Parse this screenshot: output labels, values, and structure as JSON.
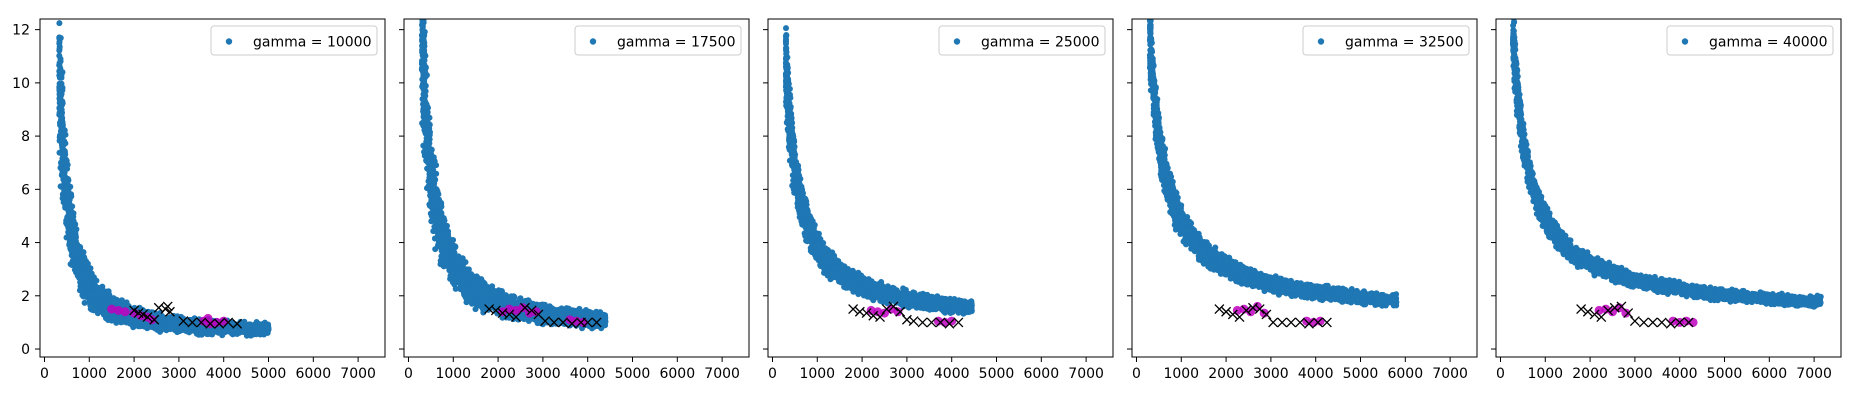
{
  "chart_data": [
    {
      "type": "scatter",
      "legend": "gamma = 10000",
      "legend_position": "top-right",
      "xlim": [
        -100,
        7600
      ],
      "ylim": [
        -0.3,
        12.4
      ],
      "xticks": [
        0,
        1000,
        2000,
        3000,
        4000,
        5000,
        6000,
        7000
      ],
      "yticks": [
        0,
        2,
        4,
        6,
        8,
        10,
        12
      ],
      "show_yticklabels": true,
      "colors": {
        "series": "#1f77b4",
        "highlight": "#bf00bf",
        "marker_x": "#000000"
      },
      "main_curve": {
        "x_start": 330,
        "x_end": 5000,
        "peak": 10.5,
        "k": 1.55,
        "floor": 0.6,
        "spread": 0.3
      },
      "x_markers": [
        [
          2000,
          1.45
        ],
        [
          2100,
          1.35
        ],
        [
          2200,
          1.3
        ],
        [
          2300,
          1.2
        ],
        [
          2450,
          1.1
        ],
        [
          2550,
          1.55
        ],
        [
          2700,
          1.5
        ],
        [
          2800,
          1.4
        ],
        [
          2750,
          1.6
        ],
        [
          3100,
          1.05
        ],
        [
          3300,
          1.0
        ],
        [
          3500,
          1.0
        ],
        [
          3700,
          0.95
        ],
        [
          3900,
          0.95
        ],
        [
          4100,
          1.0
        ],
        [
          4300,
          0.95
        ]
      ],
      "magenta_points": [
        [
          1500,
          1.5
        ],
        [
          1650,
          1.45
        ],
        [
          1800,
          1.4
        ],
        [
          2000,
          1.35
        ],
        [
          2150,
          1.25
        ],
        [
          2300,
          1.2
        ],
        [
          2400,
          1.1
        ],
        [
          3550,
          1.05
        ],
        [
          3700,
          0.95
        ],
        [
          3850,
          1.0
        ],
        [
          4000,
          1.05
        ],
        [
          3650,
          1.15
        ]
      ]
    },
    {
      "type": "scatter",
      "legend": "gamma = 17500",
      "legend_position": "top-right",
      "xlim": [
        -100,
        7600
      ],
      "ylim": [
        -0.3,
        12.4
      ],
      "xticks": [
        0,
        1000,
        2000,
        3000,
        4000,
        5000,
        6000,
        7000
      ],
      "yticks": [
        0,
        2,
        4,
        6,
        8,
        10,
        12
      ],
      "show_yticklabels": false,
      "colors": {
        "series": "#1f77b4",
        "highlight": "#bf00bf",
        "marker_x": "#000000"
      },
      "main_curve": {
        "x_start": 300,
        "x_end": 4400,
        "peak": 11.9,
        "k": 1.25,
        "floor": 0.7,
        "spread": 0.25
      },
      "x_markers": [
        [
          1800,
          1.5
        ],
        [
          1950,
          1.45
        ],
        [
          2100,
          1.35
        ],
        [
          2250,
          1.3
        ],
        [
          2400,
          1.2
        ],
        [
          2600,
          1.55
        ],
        [
          2750,
          1.45
        ],
        [
          2900,
          1.3
        ],
        [
          3050,
          1.05
        ],
        [
          3250,
          1.0
        ],
        [
          3450,
          1.0
        ],
        [
          3650,
          0.95
        ],
        [
          3850,
          1.0
        ],
        [
          4000,
          1.0
        ],
        [
          4200,
          1.0
        ]
      ],
      "magenta_points": [
        [
          2100,
          1.4
        ],
        [
          2250,
          1.5
        ],
        [
          2400,
          1.45
        ],
        [
          2550,
          1.55
        ],
        [
          2700,
          1.35
        ],
        [
          2850,
          1.4
        ],
        [
          3600,
          1.1
        ],
        [
          3750,
          1.05
        ],
        [
          3900,
          1.0
        ]
      ]
    },
    {
      "type": "scatter",
      "legend": "gamma = 25000",
      "legend_position": "top-right",
      "xlim": [
        -100,
        7600
      ],
      "ylim": [
        -0.3,
        12.4
      ],
      "xticks": [
        0,
        1000,
        2000,
        3000,
        4000,
        5000,
        6000,
        7000
      ],
      "yticks": [
        0,
        2,
        4,
        6,
        8,
        10,
        12
      ],
      "show_yticklabels": false,
      "colors": {
        "series": "#1f77b4",
        "highlight": "#bf00bf",
        "marker_x": "#000000"
      },
      "main_curve": {
        "x_start": 300,
        "x_end": 4450,
        "peak": 10.7,
        "k": 1.0,
        "floor": 0.9,
        "spread": 0.15
      },
      "x_markers": [
        [
          1800,
          1.5
        ],
        [
          1950,
          1.4
        ],
        [
          2100,
          1.35
        ],
        [
          2250,
          1.25
        ],
        [
          2400,
          1.2
        ],
        [
          2550,
          1.5
        ],
        [
          2700,
          1.6
        ],
        [
          2850,
          1.4
        ],
        [
          3000,
          1.1
        ],
        [
          3150,
          1.05
        ],
        [
          3350,
          1.0
        ],
        [
          3550,
          1.0
        ],
        [
          3750,
          1.0
        ],
        [
          3950,
          0.95
        ],
        [
          4150,
          1.0
        ]
      ],
      "magenta_points": [
        [
          2200,
          1.45
        ],
        [
          2350,
          1.4
        ],
        [
          2500,
          1.35
        ],
        [
          2650,
          1.5
        ],
        [
          2800,
          1.4
        ],
        [
          3700,
          1.05
        ],
        [
          3850,
          1.0
        ],
        [
          4000,
          1.05
        ]
      ]
    },
    {
      "type": "scatter",
      "legend": "gamma = 32500",
      "legend_position": "top-right",
      "xlim": [
        -100,
        7600
      ],
      "ylim": [
        -0.3,
        12.4
      ],
      "xticks": [
        0,
        1000,
        2000,
        3000,
        4000,
        5000,
        6000,
        7000
      ],
      "yticks": [
        0,
        2,
        4,
        6,
        8,
        10,
        12
      ],
      "show_yticklabels": false,
      "colors": {
        "series": "#1f77b4",
        "highlight": "#bf00bf",
        "marker_x": "#000000"
      },
      "main_curve": {
        "x_start": 300,
        "x_end": 5800,
        "peak": 11.7,
        "k": 0.85,
        "floor": 0.95,
        "spread": 0.12
      },
      "x_markers": [
        [
          1850,
          1.5
        ],
        [
          2000,
          1.4
        ],
        [
          2150,
          1.3
        ],
        [
          2300,
          1.2
        ],
        [
          2450,
          1.45
        ],
        [
          2600,
          1.55
        ],
        [
          2750,
          1.5
        ],
        [
          2900,
          1.3
        ],
        [
          3050,
          1.0
        ],
        [
          3250,
          1.0
        ],
        [
          3450,
          1.0
        ],
        [
          3650,
          1.0
        ],
        [
          3850,
          0.95
        ],
        [
          4050,
          1.0
        ],
        [
          4250,
          1.0
        ]
      ],
      "magenta_points": [
        [
          2250,
          1.45
        ],
        [
          2400,
          1.5
        ],
        [
          2550,
          1.4
        ],
        [
          2700,
          1.6
        ],
        [
          2850,
          1.35
        ],
        [
          3800,
          1.05
        ],
        [
          3950,
          1.0
        ],
        [
          4100,
          1.05
        ]
      ]
    },
    {
      "type": "scatter",
      "legend": "gamma = 40000",
      "legend_position": "top-right",
      "xlim": [
        -100,
        7600
      ],
      "ylim": [
        -0.3,
        12.4
      ],
      "xticks": [
        0,
        1000,
        2000,
        3000,
        4000,
        5000,
        6000,
        7000
      ],
      "yticks": [
        0,
        2,
        4,
        6,
        8,
        10,
        12
      ],
      "show_yticklabels": false,
      "colors": {
        "series": "#1f77b4",
        "highlight": "#bf00bf",
        "marker_x": "#000000"
      },
      "main_curve": {
        "x_start": 280,
        "x_end": 7150,
        "peak": 11.9,
        "k": 0.8,
        "floor": 0.95,
        "spread": 0.1
      },
      "x_markers": [
        [
          1800,
          1.5
        ],
        [
          1950,
          1.4
        ],
        [
          2100,
          1.3
        ],
        [
          2250,
          1.2
        ],
        [
          2400,
          1.45
        ],
        [
          2550,
          1.55
        ],
        [
          2700,
          1.6
        ],
        [
          2850,
          1.35
        ],
        [
          3000,
          1.05
        ],
        [
          3200,
          1.0
        ],
        [
          3400,
          1.0
        ],
        [
          3600,
          1.0
        ],
        [
          3800,
          0.95
        ],
        [
          4000,
          1.0
        ],
        [
          4200,
          1.0
        ]
      ],
      "magenta_points": [
        [
          2200,
          1.45
        ],
        [
          2350,
          1.5
        ],
        [
          2500,
          1.4
        ],
        [
          2650,
          1.55
        ],
        [
          2800,
          1.35
        ],
        [
          3850,
          1.05
        ],
        [
          4000,
          1.0
        ],
        [
          4150,
          1.05
        ],
        [
          4300,
          1.0
        ]
      ]
    }
  ]
}
